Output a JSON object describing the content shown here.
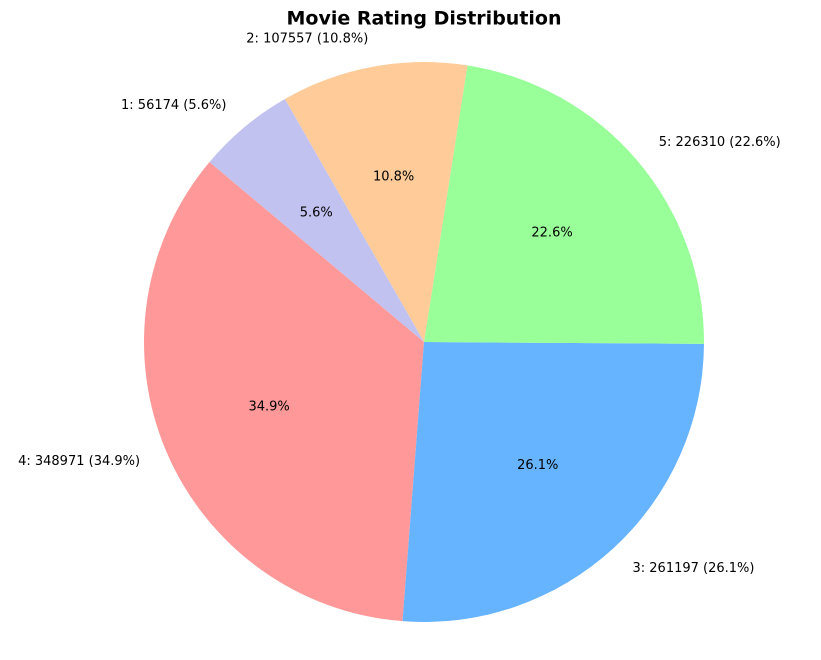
{
  "chart_data": {
    "type": "pie",
    "title": "Movie Rating Distribution",
    "labels": [
      "4: 348971 (34.9%)",
      "3: 261197 (26.1%)",
      "5: 226310 (22.6%)",
      "2: 107557 (10.8%)",
      "1: 56174 (5.6%)"
    ],
    "values": [
      348971,
      261197,
      226310,
      107557,
      56174
    ],
    "value_labels": [
      "34.9%",
      "26.1%",
      "22.6%",
      "10.8%",
      "5.6%"
    ],
    "colors": [
      "#ff9999",
      "#66b3ff",
      "#99ff99",
      "#ffcc99",
      "#c2c2f0"
    ],
    "start_angle": 140
  }
}
